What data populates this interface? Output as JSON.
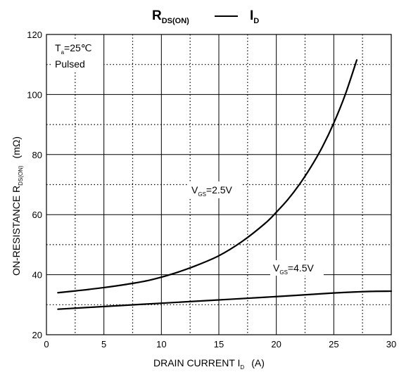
{
  "chart_data": {
    "type": "line",
    "title": {
      "left_main": "R",
      "left_sub": "DS(ON)",
      "dash": "—",
      "right_main": "I",
      "right_sub": "D"
    },
    "xlabel": {
      "main": "DRAIN CURRENT  I",
      "sub": "D",
      "unit": "(A)"
    },
    "ylabel": {
      "main": "ON-RESISTANCE  R",
      "sub": "DS(ON)",
      "unit": "(mΩ)"
    },
    "xlim": [
      0,
      30
    ],
    "ylim": [
      20,
      120
    ],
    "x_ticks": [
      "0",
      "5",
      "10",
      "15",
      "20",
      "25",
      "30"
    ],
    "y_ticks": [
      "20",
      "40",
      "60",
      "80",
      "100",
      "120"
    ],
    "grid": true,
    "conditions": {
      "temp_main": "T",
      "temp_sub": "a",
      "temp_value": "=25℃",
      "mode": "Pulsed"
    },
    "series": [
      {
        "name": "VGS=2.5V",
        "label_main": "V",
        "label_sub": "GS",
        "label_value": "=2.5V",
        "x": [
          1,
          3,
          5,
          7,
          9,
          11,
          13,
          15,
          17,
          19,
          20,
          21,
          22,
          23,
          24,
          25,
          26,
          27
        ],
        "y": [
          34,
          34.8,
          35.7,
          36.8,
          38.2,
          40.3,
          43,
          46.3,
          51,
          57,
          60.8,
          65,
          70,
          75.8,
          82.5,
          90.5,
          100,
          111.5
        ]
      },
      {
        "name": "VGS=4.5V",
        "label_main": "V",
        "label_sub": "GS",
        "label_value": "=4.5V",
        "x": [
          1,
          5,
          10,
          15,
          20,
          25,
          28,
          30
        ],
        "y": [
          28.5,
          29.4,
          30.5,
          31.6,
          32.7,
          33.9,
          34.4,
          34.5
        ]
      }
    ]
  }
}
